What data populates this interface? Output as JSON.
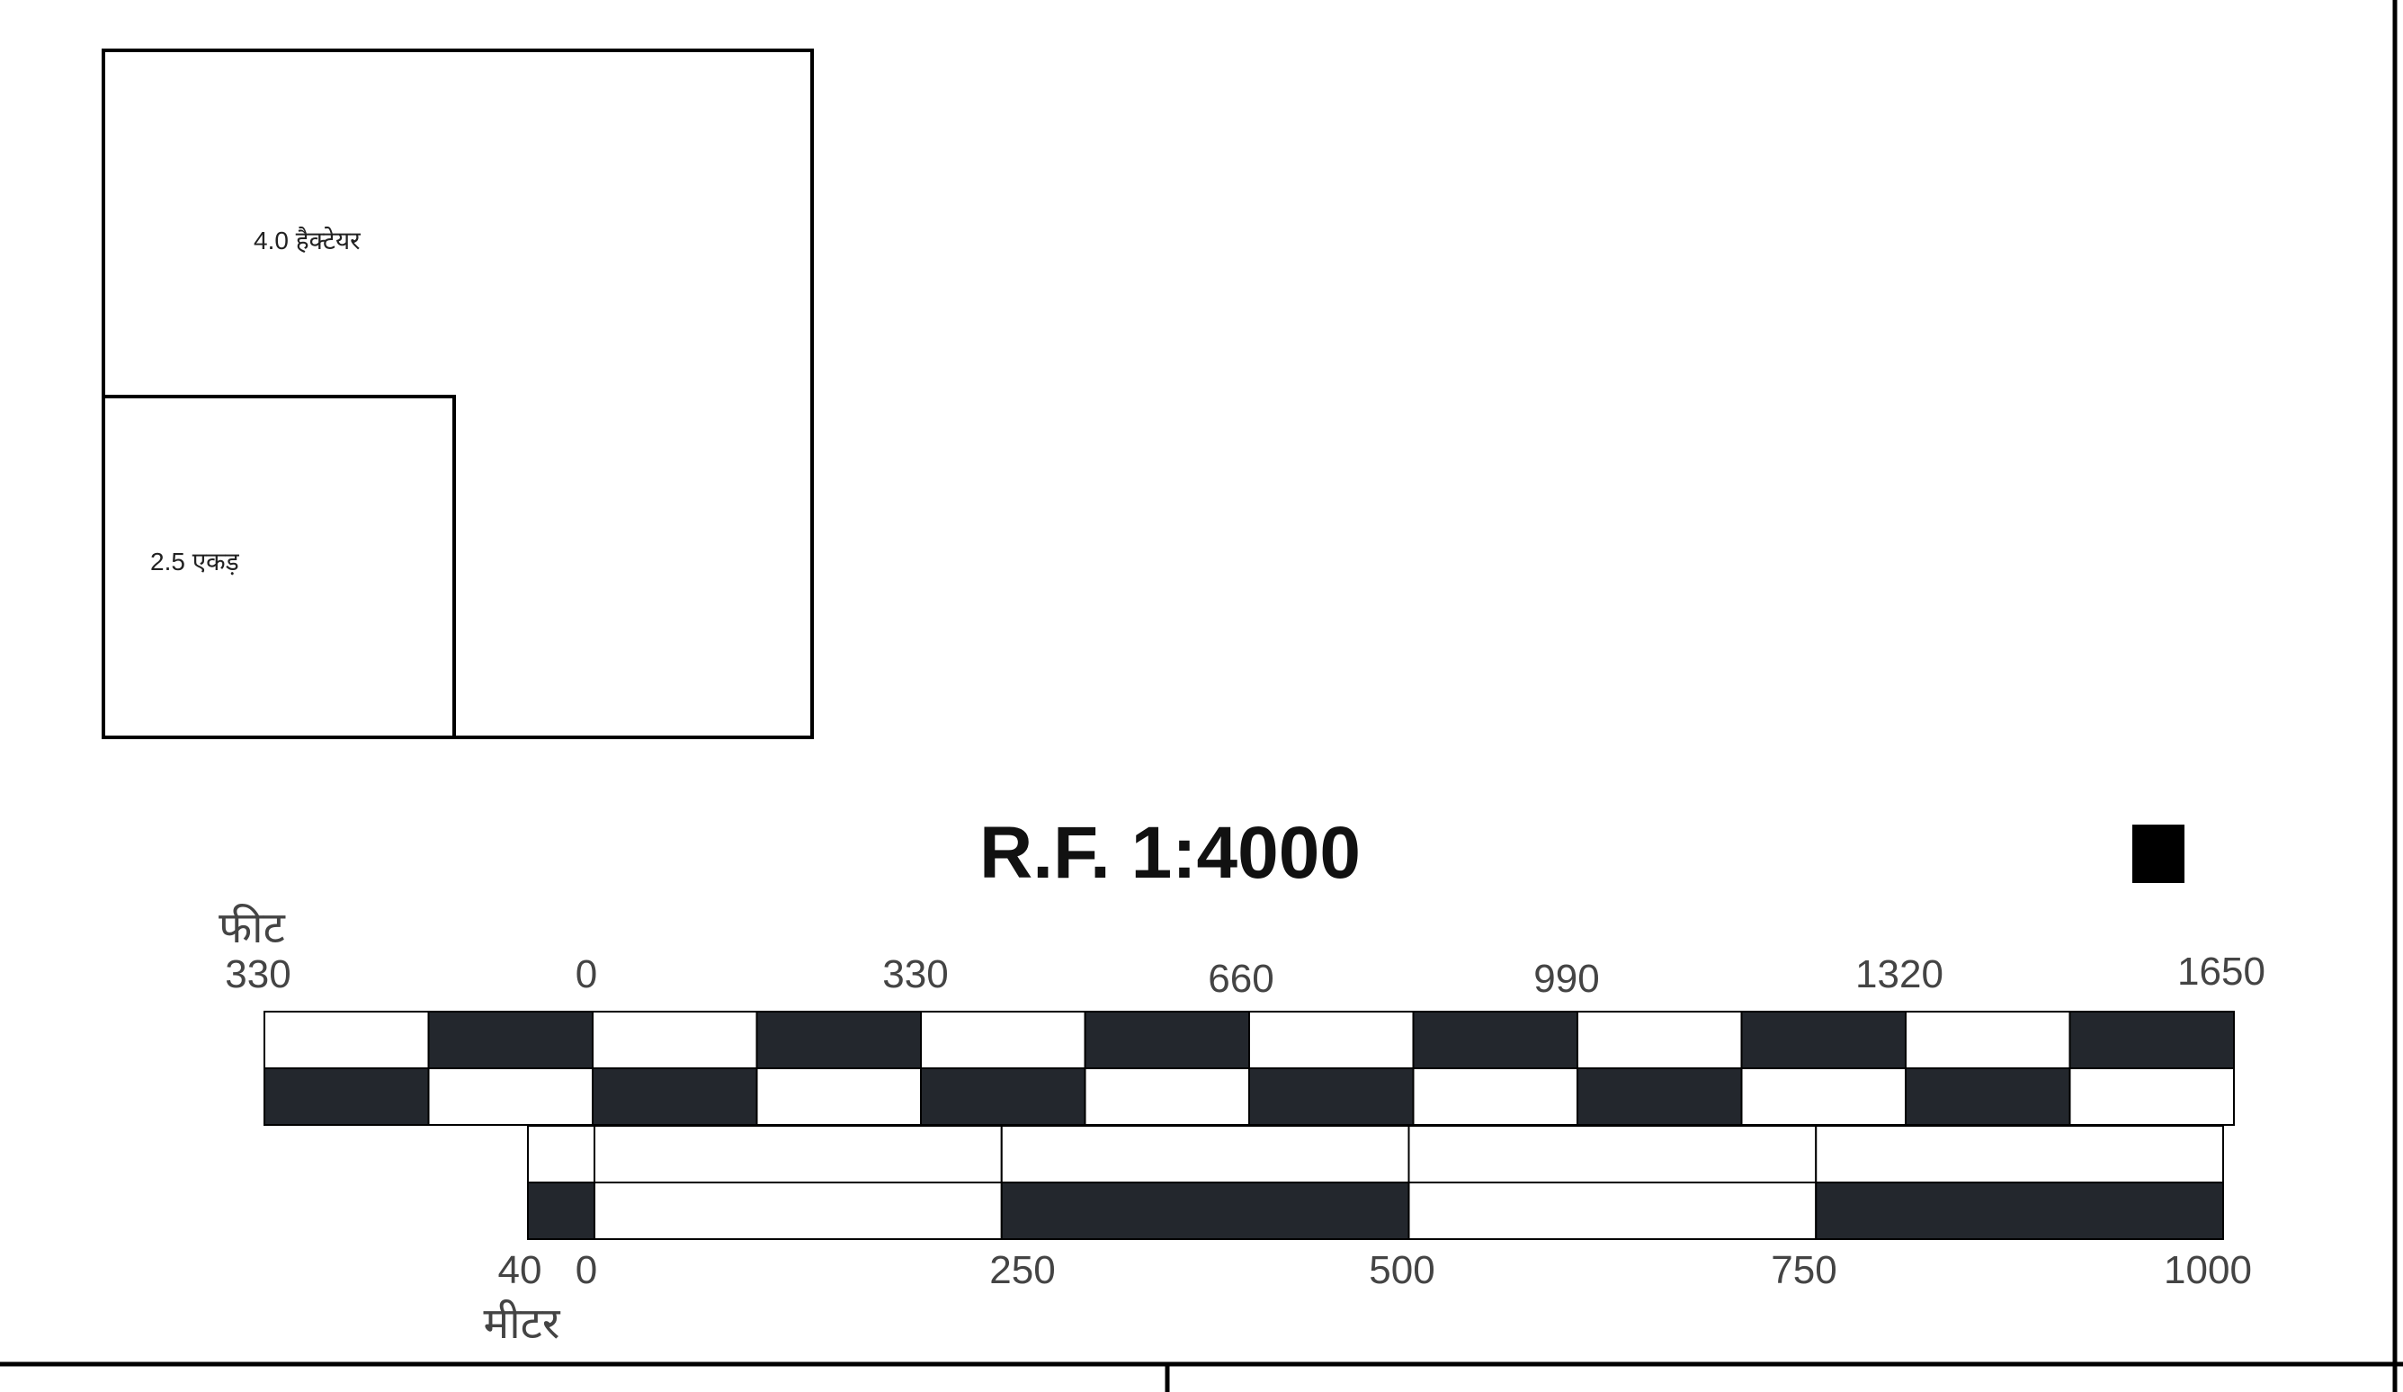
{
  "area_diagram": {
    "large_square_label": "4.0 हैक्टेयर",
    "small_square_label": "2.5 एकड़"
  },
  "scale": {
    "title": "R.F. 1:4000",
    "feet": {
      "unit_label": "फीट",
      "ticks": [
        "330",
        "0",
        "330",
        "660",
        "990",
        "1320",
        "1650"
      ]
    },
    "meters": {
      "unit_label": "मीटर",
      "ticks": [
        "40",
        "0",
        "250",
        "500",
        "750",
        "1000"
      ]
    }
  },
  "colors": {
    "dark_fill": "#23272d",
    "line": "#000000",
    "background": "#ffffff"
  }
}
